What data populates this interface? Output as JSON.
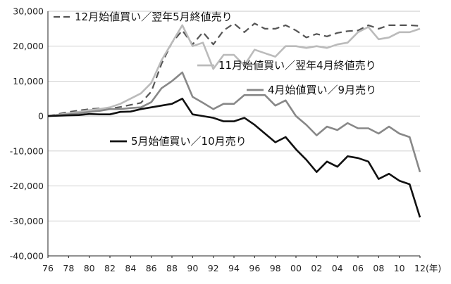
{
  "chart_data": {
    "type": "line",
    "title": "",
    "xlabel": "",
    "ylabel": "",
    "x_unit": "(年)",
    "x": [
      1976,
      1977,
      1978,
      1979,
      1980,
      1981,
      1982,
      1983,
      1984,
      1985,
      1986,
      1987,
      1988,
      1989,
      1990,
      1991,
      1992,
      1993,
      1994,
      1995,
      1996,
      1997,
      1998,
      1999,
      2000,
      2001,
      2002,
      2003,
      2004,
      2005,
      2006,
      2007,
      2008,
      2009,
      2010,
      2011,
      2012
    ],
    "xlim": [
      1976,
      2012
    ],
    "ylim": [
      -40000,
      30000
    ],
    "x_ticks": [
      {
        "value": 1976,
        "label": "76"
      },
      {
        "value": 1978,
        "label": "78"
      },
      {
        "value": 1980,
        "label": "80"
      },
      {
        "value": 1982,
        "label": "82"
      },
      {
        "value": 1984,
        "label": "84"
      },
      {
        "value": 1986,
        "label": "86"
      },
      {
        "value": 1988,
        "label": "88"
      },
      {
        "value": 1990,
        "label": "90"
      },
      {
        "value": 1992,
        "label": "92"
      },
      {
        "value": 1994,
        "label": "94"
      },
      {
        "value": 1996,
        "label": "96"
      },
      {
        "value": 1998,
        "label": "98"
      },
      {
        "value": 2000,
        "label": "00"
      },
      {
        "value": 2002,
        "label": "02"
      },
      {
        "value": 2004,
        "label": "04"
      },
      {
        "value": 2006,
        "label": "06"
      },
      {
        "value": 2008,
        "label": "08"
      },
      {
        "value": 2010,
        "label": "10"
      },
      {
        "value": 2012,
        "label": "12"
      }
    ],
    "y_ticks": [
      {
        "value": 30000,
        "label": "30,000"
      },
      {
        "value": 20000,
        "label": "20,000"
      },
      {
        "value": 10000,
        "label": "10,000"
      },
      {
        "value": 0,
        "label": "0"
      },
      {
        "value": -10000,
        "label": "-10,000"
      },
      {
        "value": -20000,
        "label": "-20,000"
      },
      {
        "value": -30000,
        "label": "-30,000"
      },
      {
        "value": -40000,
        "label": "-40,000"
      }
    ],
    "grid": "horizontal",
    "series": [
      {
        "name": "12月始値買い／翌年5月終値売り",
        "color": "#555555",
        "style": "dashed",
        "values": [
          0,
          600,
          1200,
          1600,
          2000,
          2200,
          2100,
          2600,
          3200,
          3800,
          7000,
          15000,
          21000,
          24500,
          20500,
          24000,
          20500,
          24500,
          26500,
          24000,
          26500,
          25000,
          25000,
          26000,
          24500,
          22500,
          23500,
          22800,
          23800,
          24300,
          24500,
          26000,
          25000,
          26000,
          26000,
          26000,
          25800
        ]
      },
      {
        "name": "11月始値買い／翌年4月終値売り",
        "color": "#bbbbbb",
        "style": "solid",
        "values": [
          0,
          400,
          800,
          1200,
          1700,
          2000,
          2500,
          3500,
          5000,
          6500,
          9500,
          16000,
          21000,
          26000,
          20000,
          21000,
          13500,
          17500,
          17500,
          14500,
          19000,
          18000,
          17000,
          20000,
          20000,
          19500,
          20000,
          19500,
          20500,
          21000,
          24000,
          25500,
          22000,
          22500,
          24000,
          24000,
          25000
        ]
      },
      {
        "name": "4月始値買い／9月売り",
        "color": "#888888",
        "style": "solid",
        "values": [
          0,
          200,
          500,
          800,
          1200,
          1500,
          2000,
          2000,
          2300,
          2500,
          4000,
          8000,
          10000,
          12500,
          5500,
          3800,
          2000,
          3500,
          3500,
          6000,
          6000,
          6000,
          3000,
          4500,
          0,
          -2500,
          -5500,
          -3000,
          -4000,
          -2000,
          -3500,
          -3500,
          -5000,
          -3000,
          -5000,
          -6000,
          -16000
        ]
      },
      {
        "name": "5月始値買い／10月売り",
        "color": "#111111",
        "style": "solid",
        "values": [
          0,
          100,
          200,
          300,
          600,
          500,
          500,
          1200,
          1300,
          2000,
          2500,
          3000,
          3500,
          5000,
          500,
          0,
          -500,
          -1500,
          -1500,
          -500,
          -2500,
          -5000,
          -7500,
          -6000,
          -9500,
          -12500,
          -16000,
          -13000,
          -14500,
          -11500,
          -12000,
          -13000,
          -18000,
          -16500,
          -18500,
          -19500,
          -29000
        ]
      }
    ]
  }
}
